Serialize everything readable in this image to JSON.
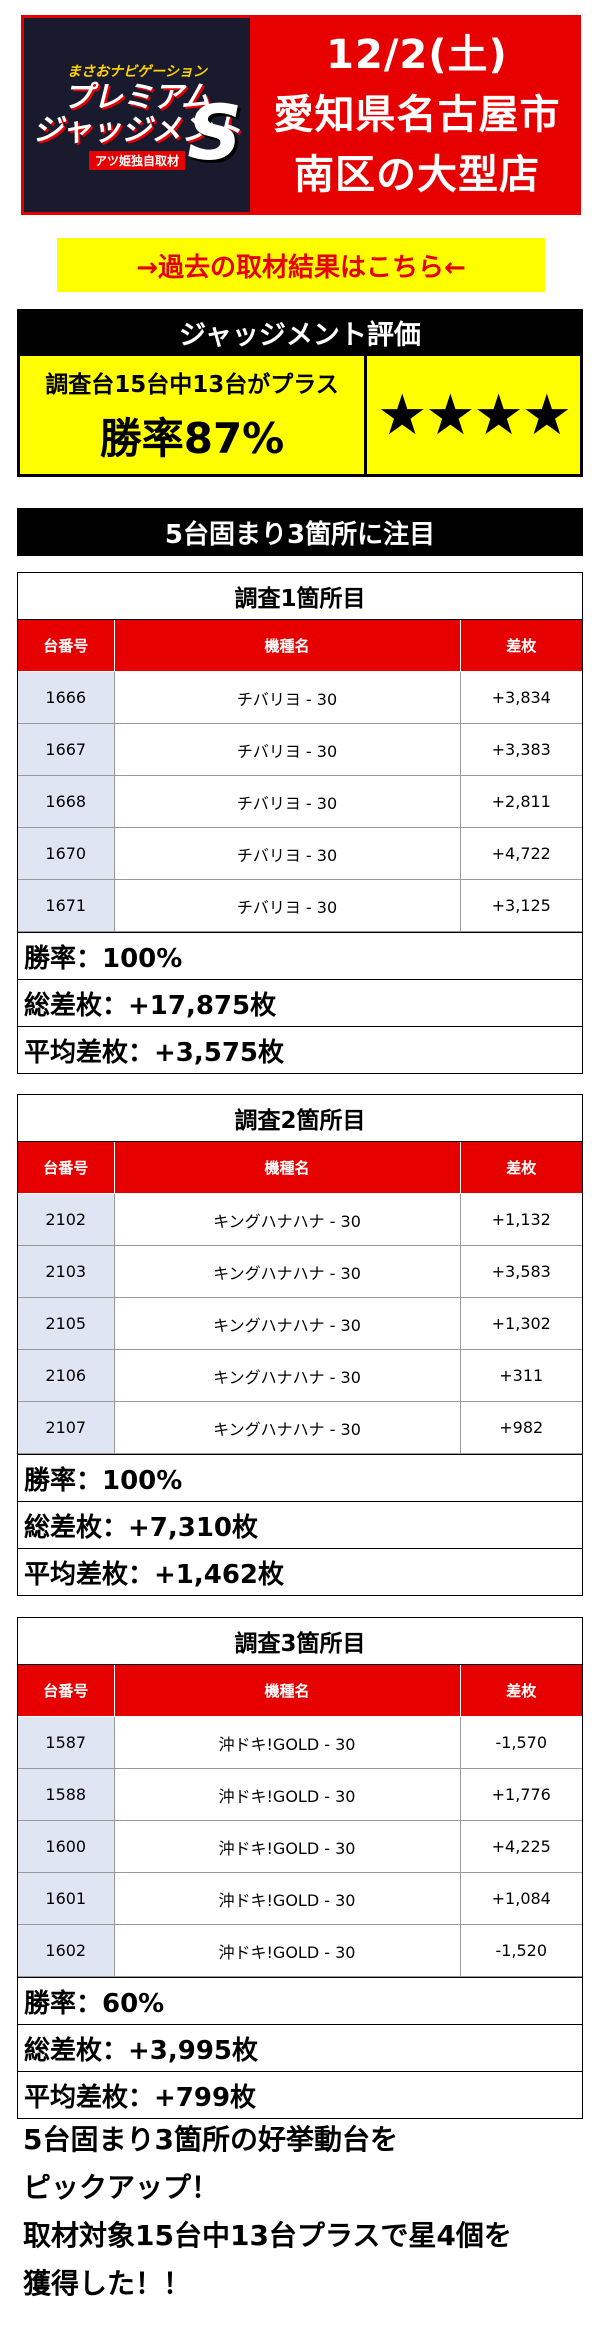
{
  "header": {
    "logo_top": "まさおナビゲーション",
    "logo_line1": "プレミアム",
    "logo_line2": "ジャッジメント",
    "logo_s": "S",
    "logo_bottom": "アツ姫独自取材",
    "date": "12/2(土)",
    "location_line1": "愛知県名古屋市",
    "location_line2": "南区の大型店"
  },
  "past_link": "→過去の取材結果はこちら←",
  "judgement": {
    "title": "ジャッジメント評価",
    "summary": "調査台15台中13台がプラス",
    "win_rate": "勝率87%",
    "stars": "★★★★"
  },
  "banner": "5台固まり3箇所に注目",
  "columns": [
    "台番号",
    "機種名",
    "差枚"
  ],
  "sections": [
    {
      "title": "調査1箇所目",
      "rows": [
        [
          "1666",
          "チバリヨ - 30",
          "+3,834"
        ],
        [
          "1667",
          "チバリヨ - 30",
          "+3,383"
        ],
        [
          "1668",
          "チバリヨ - 30",
          "+2,811"
        ],
        [
          "1670",
          "チバリヨ - 30",
          "+4,722"
        ],
        [
          "1671",
          "チバリヨ - 30",
          "+3,125"
        ]
      ],
      "win_rate": "勝率：100%",
      "total": "総差枚：+17,875枚",
      "average": "平均差枚：+3,575枚"
    },
    {
      "title": "調査2箇所目",
      "rows": [
        [
          "2102",
          "キングハナハナ - 30",
          "+1,132"
        ],
        [
          "2103",
          "キングハナハナ - 30",
          "+3,583"
        ],
        [
          "2105",
          "キングハナハナ - 30",
          "+1,302"
        ],
        [
          "2106",
          "キングハナハナ - 30",
          "+311"
        ],
        [
          "2107",
          "キングハナハナ - 30",
          "+982"
        ]
      ],
      "win_rate": "勝率：100%",
      "total": "総差枚：+7,310枚",
      "average": "平均差枚：+1,462枚"
    },
    {
      "title": "調査3箇所目",
      "rows": [
        [
          "1587",
          "沖ドキ!GOLD - 30",
          "-1,570"
        ],
        [
          "1588",
          "沖ドキ!GOLD - 30",
          "+1,776"
        ],
        [
          "1600",
          "沖ドキ!GOLD - 30",
          "+4,225"
        ],
        [
          "1601",
          "沖ドキ!GOLD - 30",
          "+1,084"
        ],
        [
          "1602",
          "沖ドキ!GOLD - 30",
          "-1,520"
        ]
      ],
      "win_rate": "勝率：60%",
      "total": "総差枚：+3,995枚",
      "average": "平均差枚：+799枚"
    }
  ],
  "footer": {
    "line1": "5台固まり3箇所の好挙動台を",
    "line2": "ピックアップ！",
    "line3": "取材対象15台中13台プラスで星4個を",
    "line4": "獲得した！！"
  }
}
